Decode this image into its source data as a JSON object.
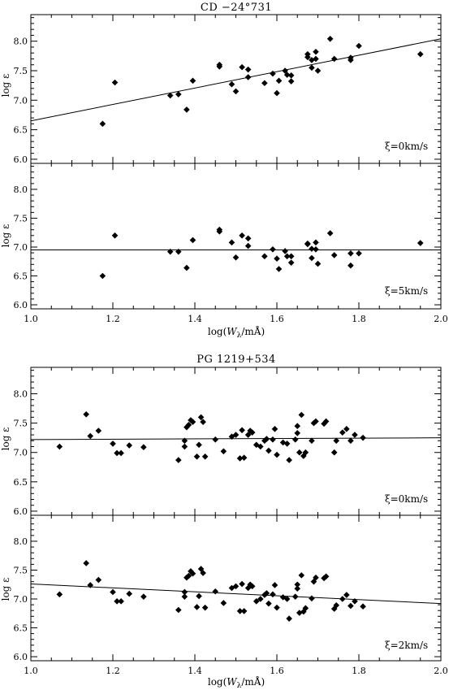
{
  "chart_data": [
    {
      "type": "scatter",
      "title": "CD −24°731",
      "subtitle": "",
      "xlabel": "",
      "ylabel": "log ε",
      "annotation": "ξ=0km/s",
      "xlim": [
        1.0,
        2.0
      ],
      "ylim": [
        5.93,
        8.45
      ],
      "xticks": [
        "1.0",
        "1.2",
        "1.4",
        "1.6",
        "1.8",
        "2.0"
      ],
      "yticks": [
        "6.0",
        "6.5",
        "7.0",
        "7.5",
        "8.0"
      ],
      "grid": false,
      "fit_line": {
        "x": [
          1.0,
          2.0
        ],
        "y": [
          6.65,
          8.04
        ]
      },
      "points": {
        "x": [
          1.175,
          1.205,
          1.34,
          1.36,
          1.38,
          1.395,
          1.46,
          1.46,
          1.49,
          1.5,
          1.515,
          1.53,
          1.53,
          1.57,
          1.59,
          1.6,
          1.605,
          1.62,
          1.625,
          1.635,
          1.635,
          1.675,
          1.675,
          1.685,
          1.685,
          1.695,
          1.695,
          1.7,
          1.73,
          1.74,
          1.78,
          1.78,
          1.8,
          1.95
        ],
        "y": [
          6.6,
          7.3,
          7.08,
          7.1,
          6.84,
          7.33,
          7.57,
          7.6,
          7.27,
          7.15,
          7.56,
          7.52,
          7.39,
          7.29,
          7.45,
          7.12,
          7.33,
          7.5,
          7.43,
          7.32,
          7.42,
          7.73,
          7.78,
          7.55,
          7.68,
          7.7,
          7.82,
          7.5,
          8.04,
          7.7,
          7.68,
          7.72,
          7.92,
          7.78
        ]
      }
    },
    {
      "type": "scatter",
      "title": "",
      "xlabel": "log(Wλ/mÅ)",
      "ylabel": "log ε",
      "annotation": "ξ=5km/s",
      "xlim": [
        1.0,
        2.0
      ],
      "ylim": [
        5.93,
        8.45
      ],
      "xticks": [
        "1.0",
        "1.2",
        "1.4",
        "1.6",
        "1.8",
        "2.0"
      ],
      "yticks": [
        "6.0",
        "6.5",
        "7.0",
        "7.5",
        "8.0"
      ],
      "grid": false,
      "fit_line": {
        "x": [
          1.0,
          2.0
        ],
        "y": [
          6.95,
          6.95
        ]
      },
      "points": {
        "x": [
          1.175,
          1.205,
          1.34,
          1.36,
          1.38,
          1.395,
          1.46,
          1.46,
          1.49,
          1.5,
          1.515,
          1.53,
          1.53,
          1.57,
          1.59,
          1.6,
          1.605,
          1.62,
          1.625,
          1.635,
          1.635,
          1.675,
          1.675,
          1.685,
          1.685,
          1.695,
          1.695,
          1.7,
          1.73,
          1.74,
          1.78,
          1.78,
          1.8,
          1.95
        ],
        "y": [
          6.5,
          7.2,
          6.92,
          6.92,
          6.64,
          7.12,
          7.27,
          7.3,
          7.08,
          6.82,
          7.2,
          7.15,
          7.02,
          6.84,
          6.96,
          6.8,
          6.62,
          6.93,
          6.84,
          6.73,
          6.84,
          7.05,
          7.06,
          6.81,
          6.97,
          6.96,
          7.08,
          6.71,
          7.24,
          6.86,
          6.89,
          6.68,
          6.89,
          7.07
        ]
      }
    },
    {
      "type": "scatter",
      "title": "PG 1219+534",
      "xlabel": "",
      "ylabel": "log ε",
      "annotation": "ξ=0km/s",
      "xlim": [
        1.0,
        2.0
      ],
      "ylim": [
        5.93,
        8.45
      ],
      "xticks": [
        "1.0",
        "1.2",
        "1.4",
        "1.6",
        "1.8",
        "2.0"
      ],
      "yticks": [
        "6.0",
        "6.5",
        "7.0",
        "7.5",
        "8.0"
      ],
      "grid": false,
      "fit_line": {
        "x": [
          1.0,
          2.0
        ],
        "y": [
          7.22,
          7.25
        ]
      },
      "points": {
        "x": [
          1.07,
          1.135,
          1.145,
          1.165,
          1.2,
          1.21,
          1.22,
          1.24,
          1.275,
          1.36,
          1.375,
          1.375,
          1.38,
          1.385,
          1.39,
          1.395,
          1.405,
          1.41,
          1.415,
          1.42,
          1.425,
          1.45,
          1.47,
          1.49,
          1.5,
          1.51,
          1.515,
          1.52,
          1.53,
          1.535,
          1.54,
          1.55,
          1.56,
          1.57,
          1.575,
          1.58,
          1.59,
          1.595,
          1.6,
          1.615,
          1.625,
          1.63,
          1.645,
          1.65,
          1.65,
          1.655,
          1.66,
          1.665,
          1.67,
          1.685,
          1.69,
          1.695,
          1.715,
          1.72,
          1.74,
          1.745,
          1.76,
          1.77,
          1.78,
          1.79,
          1.81
        ],
        "y": [
          7.1,
          7.65,
          7.28,
          7.37,
          7.15,
          6.99,
          6.99,
          7.12,
          7.09,
          6.87,
          7.2,
          7.1,
          7.43,
          7.47,
          7.55,
          7.52,
          6.93,
          7.13,
          7.6,
          7.52,
          6.93,
          7.22,
          7.02,
          7.27,
          7.3,
          6.9,
          7.38,
          6.91,
          7.3,
          7.37,
          7.34,
          7.13,
          7.1,
          7.2,
          7.23,
          7.03,
          7.22,
          7.4,
          6.96,
          7.17,
          7.15,
          6.87,
          7.22,
          7.33,
          7.45,
          7.0,
          7.64,
          6.94,
          7.0,
          7.2,
          7.5,
          7.53,
          7.49,
          7.53,
          7.0,
          7.2,
          7.34,
          7.4,
          7.2,
          7.3,
          7.25
        ]
      }
    },
    {
      "type": "scatter",
      "title": "",
      "xlabel": "log(Wλ/mÅ)",
      "ylabel": "log ε",
      "annotation": "ξ=2km/s",
      "xlim": [
        1.0,
        2.0
      ],
      "ylim": [
        5.93,
        8.45
      ],
      "xticks": [
        "1.0",
        "1.2",
        "1.4",
        "1.6",
        "1.8",
        "2.0"
      ],
      "yticks": [
        "6.0",
        "6.5",
        "7.0",
        "7.5",
        "8.0"
      ],
      "grid": false,
      "fit_line": {
        "x": [
          1.0,
          2.0
        ],
        "y": [
          7.26,
          6.92
        ]
      },
      "points": {
        "x": [
          1.07,
          1.135,
          1.145,
          1.165,
          1.2,
          1.21,
          1.22,
          1.24,
          1.275,
          1.36,
          1.375,
          1.375,
          1.38,
          1.385,
          1.39,
          1.395,
          1.405,
          1.41,
          1.415,
          1.42,
          1.425,
          1.45,
          1.47,
          1.49,
          1.5,
          1.51,
          1.515,
          1.52,
          1.53,
          1.535,
          1.54,
          1.55,
          1.56,
          1.57,
          1.575,
          1.58,
          1.59,
          1.595,
          1.6,
          1.615,
          1.625,
          1.63,
          1.645,
          1.65,
          1.65,
          1.655,
          1.66,
          1.665,
          1.67,
          1.685,
          1.69,
          1.695,
          1.715,
          1.72,
          1.74,
          1.745,
          1.76,
          1.77,
          1.78,
          1.79,
          1.81
        ],
        "y": [
          7.08,
          7.62,
          7.24,
          7.33,
          7.12,
          6.96,
          6.96,
          7.09,
          7.04,
          6.81,
          7.12,
          7.04,
          7.37,
          7.4,
          7.48,
          7.44,
          6.86,
          7.05,
          7.52,
          7.45,
          6.85,
          7.13,
          6.93,
          7.19,
          7.22,
          6.79,
          7.26,
          6.79,
          7.19,
          7.25,
          7.22,
          6.96,
          7.0,
          7.07,
          7.1,
          6.92,
          7.08,
          7.24,
          6.85,
          7.03,
          7.0,
          6.66,
          7.04,
          7.18,
          7.25,
          6.76,
          7.41,
          6.78,
          6.84,
          7.01,
          7.3,
          7.37,
          7.36,
          7.39,
          6.83,
          6.89,
          7.0,
          7.07,
          6.88,
          6.96,
          6.87
        ]
      }
    }
  ]
}
